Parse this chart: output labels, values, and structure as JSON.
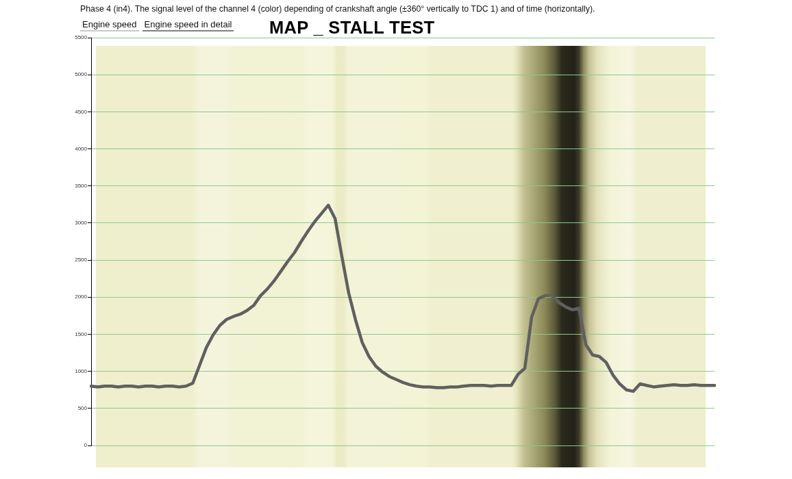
{
  "chart_data": {
    "type": "line",
    "title": "MAP _ STALL TEST",
    "subtitle": "Phase 4 (in4). The signal level of the channel 4 (color) depending of crankshaft angle (±360° vertically to TDC 1) and of time (horizontally).",
    "annotations": [
      "Engine speed",
      "Engine speed in detail"
    ],
    "categories": [
      null,
      null,
      null,
      null,
      null,
      null,
      null,
      null,
      null,
      null,
      null,
      null,
      null,
      null,
      null,
      null,
      null,
      null,
      null,
      null,
      null,
      null,
      null,
      null,
      null,
      null,
      null,
      null,
      null,
      null,
      null,
      null,
      null,
      null,
      null,
      null,
      null,
      null,
      null,
      null,
      null,
      null,
      null,
      null,
      null,
      null,
      null,
      null,
      null,
      null,
      null,
      null,
      null,
      null,
      null,
      null,
      null,
      null,
      null,
      null,
      null,
      null,
      null,
      null,
      null,
      null,
      null,
      null,
      null,
      null,
      null,
      null,
      null,
      null,
      null,
      null,
      null,
      null,
      null,
      null,
      null,
      null,
      null,
      null,
      null,
      null,
      null,
      null,
      null,
      null,
      null,
      null,
      null
    ],
    "series": [
      {
        "color": "#606060",
        "values": [
          800,
          790,
          800,
          800,
          790,
          800,
          800,
          790,
          800,
          800,
          790,
          800,
          800,
          790,
          800,
          840,
          1080,
          1320,
          1490,
          1620,
          1700,
          1740,
          1770,
          1820,
          1890,
          2020,
          2110,
          2220,
          2350,
          2480,
          2600,
          2750,
          2890,
          3020,
          3130,
          3240,
          3060,
          2550,
          2060,
          1700,
          1390,
          1200,
          1070,
          990,
          930,
          890,
          850,
          820,
          800,
          790,
          790,
          780,
          780,
          790,
          790,
          800,
          810,
          810,
          810,
          800,
          810,
          810,
          810,
          960,
          1040,
          1730,
          1980,
          2020,
          2020,
          1930,
          1870,
          1830,
          1850,
          1360,
          1220,
          1200,
          1120,
          950,
          830,
          750,
          730,
          830,
          810,
          790,
          800,
          810,
          820,
          810,
          810,
          820,
          810,
          810,
          810
        ]
      }
    ],
    "ylim": [
      0,
      5500
    ],
    "yticks": [
      0,
      500,
      1000,
      1500,
      2000,
      2500,
      3000,
      3500,
      4000,
      4500,
      5000,
      5500
    ],
    "grid": "y",
    "tick_labels": "y",
    "legend": false
  }
}
